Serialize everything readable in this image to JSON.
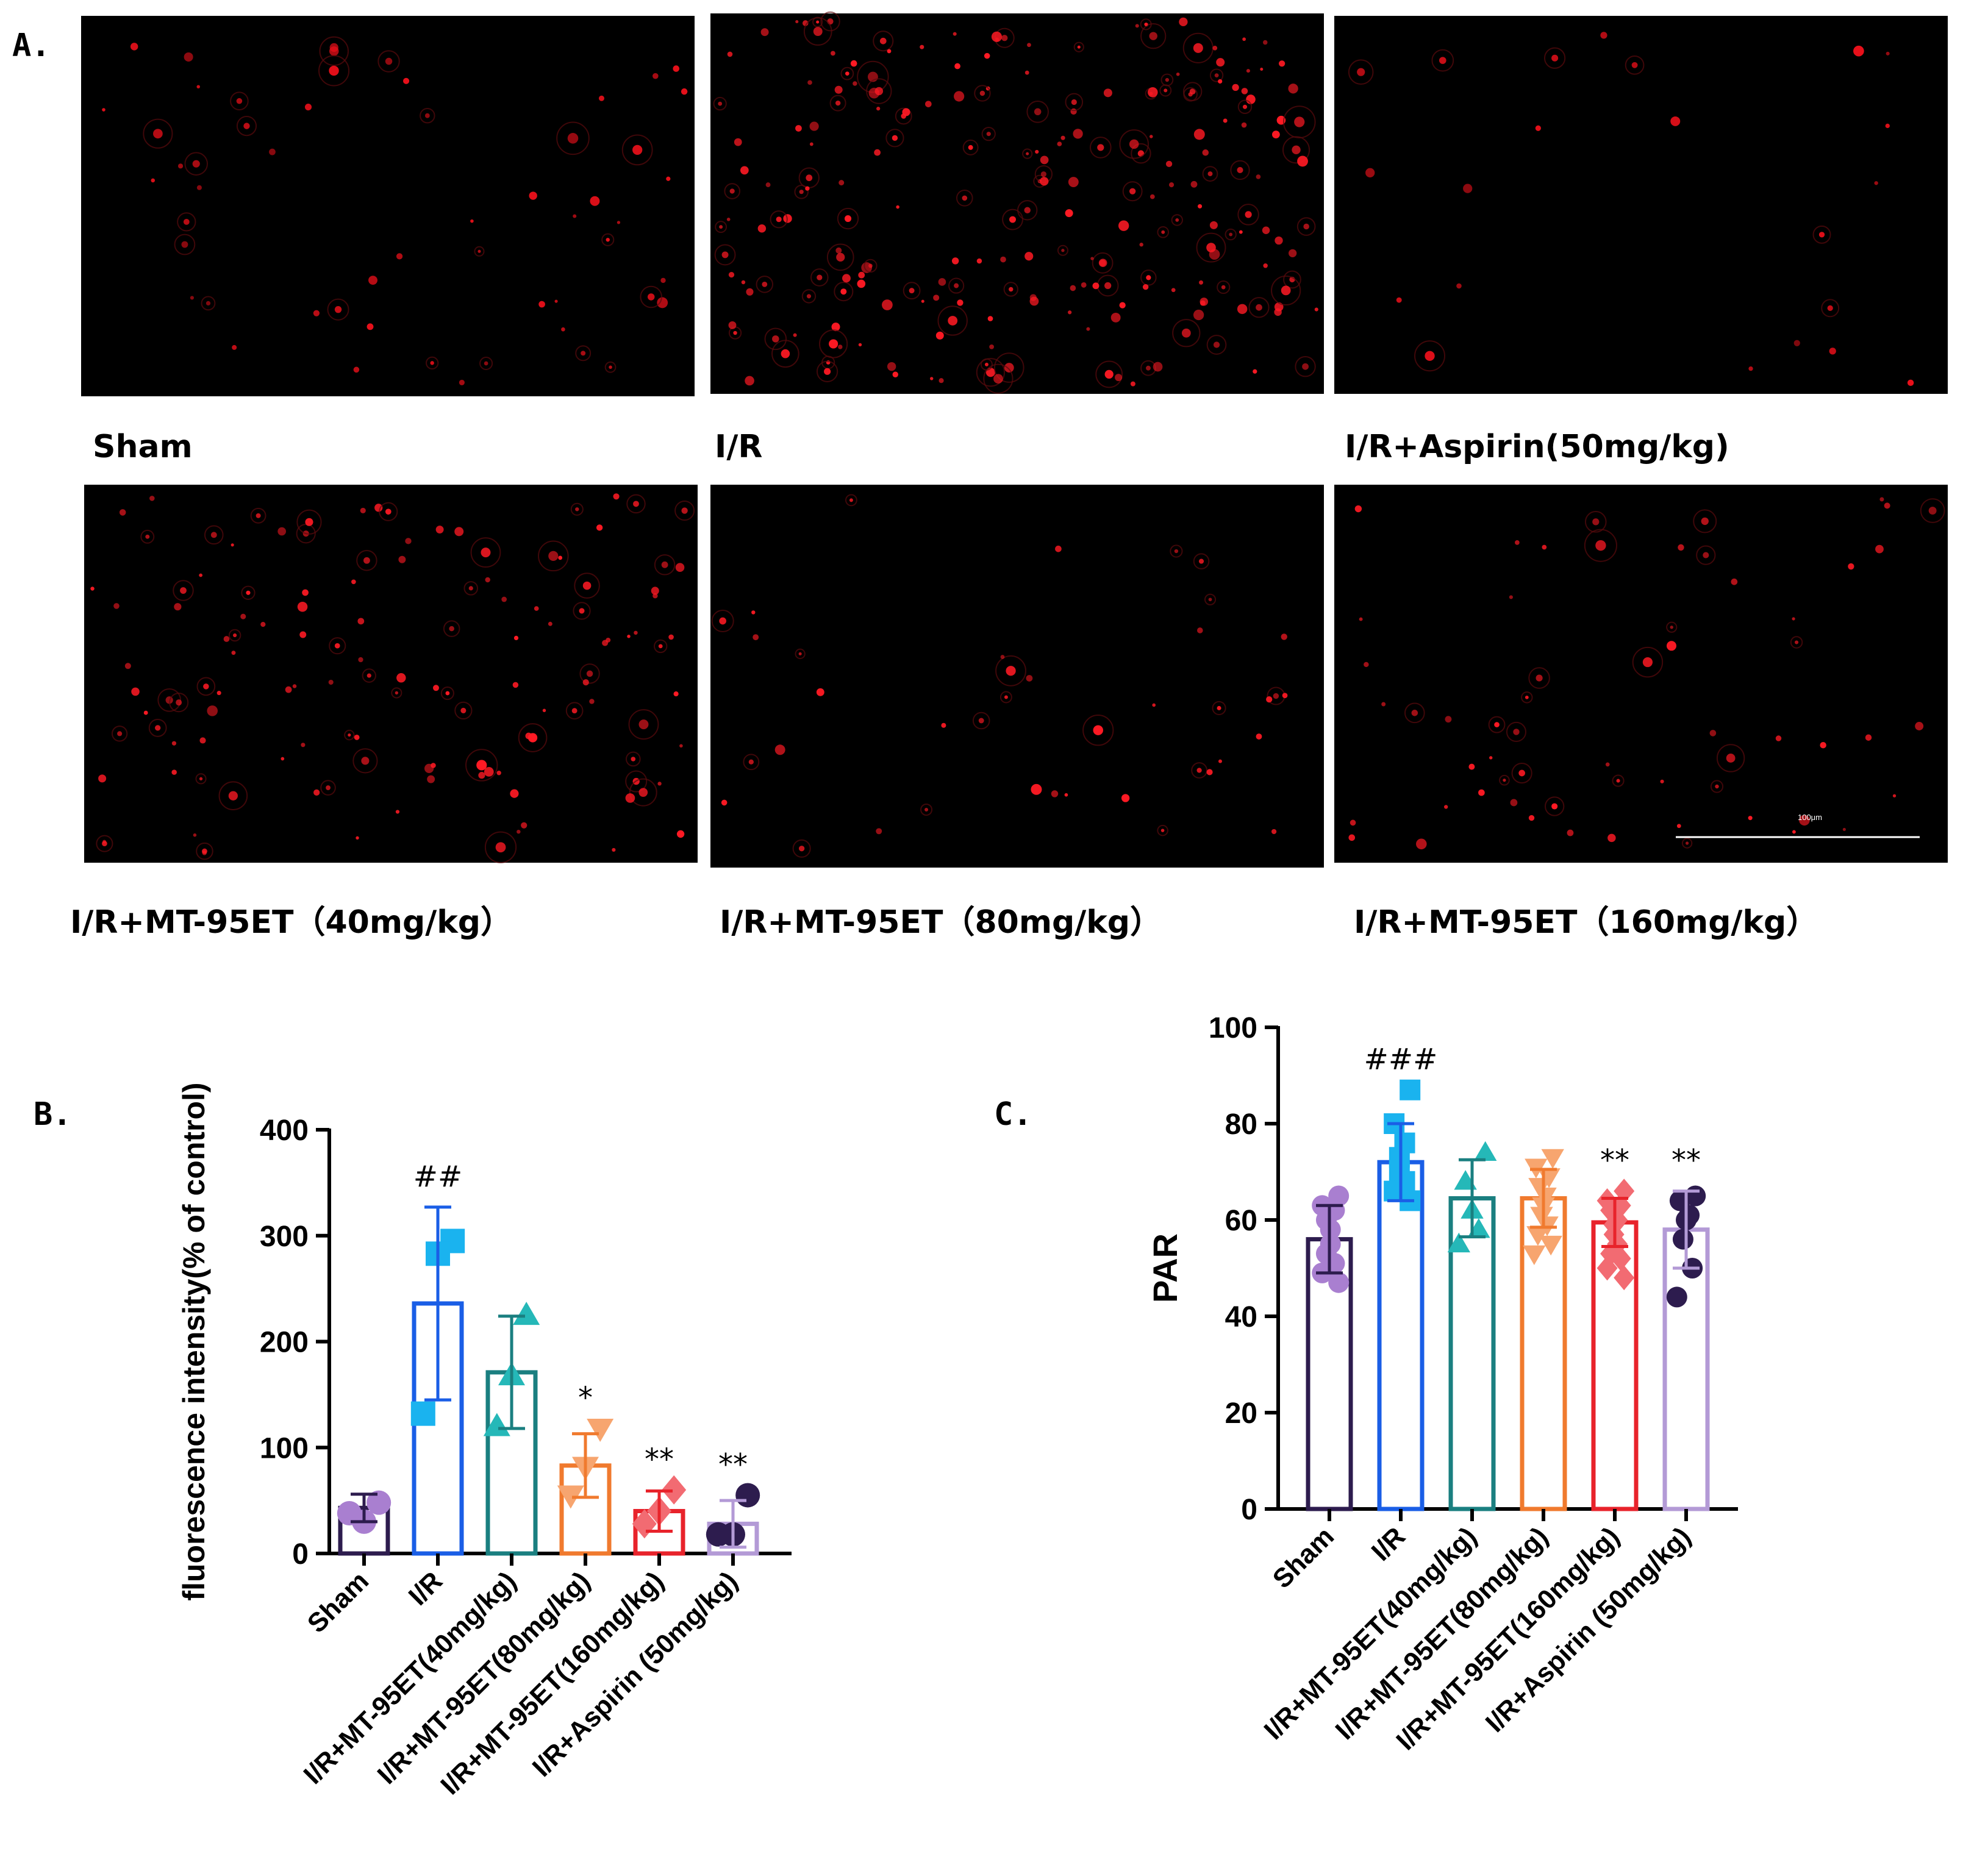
{
  "panel_a": {
    "letter": "A.",
    "images": [
      {
        "caption": "Sham",
        "cells": 55,
        "cell_color": "#e8101a",
        "background": "#000000"
      },
      {
        "caption": "I/R",
        "cells": 230,
        "cell_color": "#ff1a24",
        "background": "#000000"
      },
      {
        "caption": "I/R+Aspirin(50mg/kg)",
        "cells": 22,
        "cell_color": "#e8101a",
        "background": "#000000"
      },
      {
        "caption": "I/R+MT-95ET（40mg/kg）",
        "cells": 130,
        "cell_color": "#ff1a24",
        "background": "#000000"
      },
      {
        "caption": "I/R+MT-95ET（80mg/kg）",
        "cells": 40,
        "cell_color": "#ff1a24",
        "background": "#000000"
      },
      {
        "caption": "I/R+MT-95ET（160mg/kg）",
        "cells": 60,
        "cell_color": "#ff1a24",
        "background": "#000000",
        "scale_bar": "100μm"
      }
    ]
  },
  "chart_data": [
    {
      "letter": "B.",
      "type": "bar",
      "ylabel": "fluorescence intensity(% of control)",
      "ylim": [
        0,
        400
      ],
      "yticks": [
        0,
        100,
        200,
        300,
        400
      ],
      "categories": [
        "Sham",
        "I/R",
        "I/R+MT-95ET(40mg/kg)",
        "I/R+MT-95ET(80mg/kg)",
        "I/R+MT-95ET(160mg/kg)",
        "I/R+Aspirin (50mg/kg)"
      ],
      "values": [
        43,
        236,
        171,
        83,
        40,
        28
      ],
      "errors": [
        13,
        91,
        53,
        30,
        19,
        22
      ],
      "colors": [
        "#2d1c4e",
        "#1a5ee6",
        "#1a7f80",
        "#f07a2e",
        "#e8232b",
        "#b39ad6"
      ],
      "marker_colors": [
        "#a97fd0",
        "#1ab3ef",
        "#25b8b8",
        "#f7a56f",
        "#f26b72",
        "#2d1c4e"
      ],
      "markers": [
        "circle",
        "square",
        "triangle",
        "triangle-down",
        "diamond",
        "circle"
      ],
      "points": [
        [
          48,
          30,
          38
        ],
        [
          295,
          283,
          132
        ],
        [
          225,
          168,
          120
        ],
        [
          118,
          82,
          55
        ],
        [
          60,
          40,
          28
        ],
        [
          55,
          18,
          18
        ]
      ],
      "significance": [
        "",
        "##",
        "",
        "*",
        "**",
        "**"
      ]
    },
    {
      "letter": "C.",
      "type": "bar",
      "ylabel": "PAR",
      "ylim": [
        0,
        100
      ],
      "yticks": [
        0,
        20,
        40,
        60,
        80,
        100
      ],
      "categories": [
        "Sham",
        "I/R",
        "I/R+MT-95ET(40mg/kg)",
        "I/R+MT-95ET(80mg/kg)",
        "I/R+MT-95ET(160mg/kg)",
        "I/R+Aspirin (50mg/kg)"
      ],
      "values": [
        56,
        72,
        64.5,
        64.5,
        59.5,
        58
      ],
      "errors": [
        7,
        8,
        8,
        6,
        5,
        8
      ],
      "colors": [
        "#2d1c4e",
        "#1a5ee6",
        "#1a7f80",
        "#f07a2e",
        "#e8232b",
        "#b39ad6"
      ],
      "marker_colors": [
        "#a97fd0",
        "#1ab3ef",
        "#25b8b8",
        "#f7a56f",
        "#f26b72",
        "#2d1c4e"
      ],
      "markers": [
        "circle",
        "square",
        "triangle",
        "triangle-down",
        "diamond",
        "circle"
      ],
      "points": [
        [
          65,
          63,
          62,
          60,
          58,
          55,
          53,
          51,
          49,
          47
        ],
        [
          87,
          80,
          76,
          73,
          70,
          68,
          66,
          64
        ],
        [
          74,
          68,
          62,
          58,
          55
        ],
        [
          73,
          71,
          69,
          67,
          65,
          63,
          61,
          59,
          57,
          55,
          53
        ],
        [
          66,
          64,
          63,
          62,
          60,
          59,
          57,
          55,
          53,
          52,
          50,
          48
        ],
        [
          65,
          64,
          61,
          60,
          56,
          50,
          44
        ]
      ],
      "significance": [
        "",
        "###",
        "",
        "",
        "**",
        "**"
      ]
    }
  ]
}
